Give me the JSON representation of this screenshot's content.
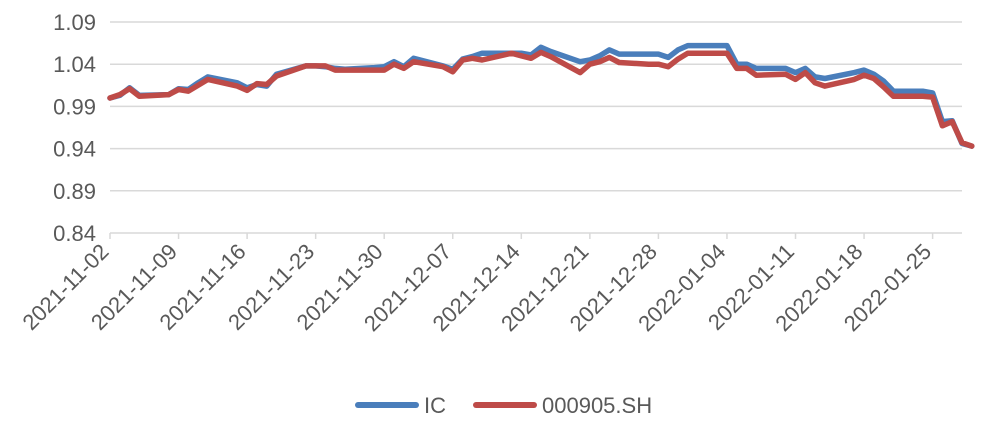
{
  "chart_data": {
    "type": "line",
    "title": "",
    "xlabel": "",
    "ylabel": "",
    "ylim": [
      0.84,
      1.09
    ],
    "yticks": [
      "0.84",
      "0.89",
      "0.94",
      "0.99",
      "1.04",
      "1.09"
    ],
    "xlim": [
      "2021-11-02",
      "2022-01-28"
    ],
    "xticks": [
      "2021-11-02",
      "2021-11-09",
      "2021-11-16",
      "2021-11-23",
      "2021-11-30",
      "2021-12-07",
      "2021-12-14",
      "2021-12-21",
      "2021-12-28",
      "2022-01-04",
      "2022-01-11",
      "2022-01-18",
      "2022-01-25"
    ],
    "grid": true,
    "legend": "bottom",
    "colors": {
      "IC": "#4a7ebb",
      "000905.SH": "#be4b48"
    },
    "series": [
      {
        "name": "IC",
        "points": [
          [
            "2021-11-02",
            1.0
          ],
          [
            "2021-11-03",
            1.003
          ],
          [
            "2021-11-04",
            1.012
          ],
          [
            "2021-11-05",
            1.003
          ],
          [
            "2021-11-08",
            1.004
          ],
          [
            "2021-11-09",
            1.011
          ],
          [
            "2021-11-10",
            1.01
          ],
          [
            "2021-11-11",
            1.018
          ],
          [
            "2021-11-12",
            1.025
          ],
          [
            "2021-11-15",
            1.018
          ],
          [
            "2021-11-16",
            1.012
          ],
          [
            "2021-11-17",
            1.016
          ],
          [
            "2021-11-18",
            1.014
          ],
          [
            "2021-11-19",
            1.028
          ],
          [
            "2021-11-22",
            1.038
          ],
          [
            "2021-11-23",
            1.038
          ],
          [
            "2021-11-24",
            1.037
          ],
          [
            "2021-11-25",
            1.035
          ],
          [
            "2021-11-26",
            1.034
          ],
          [
            "2021-11-29",
            1.036
          ],
          [
            "2021-11-30",
            1.037
          ],
          [
            "2021-12-01",
            1.043
          ],
          [
            "2021-12-02",
            1.037
          ],
          [
            "2021-12-03",
            1.047
          ],
          [
            "2021-12-06",
            1.038
          ],
          [
            "2021-12-07",
            1.034
          ],
          [
            "2021-12-08",
            1.046
          ],
          [
            "2021-12-09",
            1.049
          ],
          [
            "2021-12-10",
            1.053
          ],
          [
            "2021-12-13",
            1.053
          ],
          [
            "2021-12-14",
            1.053
          ],
          [
            "2021-12-15",
            1.051
          ],
          [
            "2021-12-16",
            1.06
          ],
          [
            "2021-12-17",
            1.055
          ],
          [
            "2021-12-20",
            1.043
          ],
          [
            "2021-12-21",
            1.045
          ],
          [
            "2021-12-22",
            1.05
          ],
          [
            "2021-12-23",
            1.057
          ],
          [
            "2021-12-24",
            1.052
          ],
          [
            "2021-12-27",
            1.052
          ],
          [
            "2021-12-28",
            1.052
          ],
          [
            "2021-12-29",
            1.048
          ],
          [
            "2021-12-30",
            1.057
          ],
          [
            "2021-12-31",
            1.062
          ],
          [
            "2022-01-04",
            1.062
          ],
          [
            "2022-01-05",
            1.04
          ],
          [
            "2022-01-06",
            1.04
          ],
          [
            "2022-01-07",
            1.035
          ],
          [
            "2022-01-10",
            1.035
          ],
          [
            "2022-01-11",
            1.03
          ],
          [
            "2022-01-12",
            1.035
          ],
          [
            "2022-01-13",
            1.025
          ],
          [
            "2022-01-14",
            1.023
          ],
          [
            "2022-01-17",
            1.03
          ],
          [
            "2022-01-18",
            1.033
          ],
          [
            "2022-01-19",
            1.028
          ],
          [
            "2022-01-20",
            1.02
          ],
          [
            "2022-01-21",
            1.008
          ],
          [
            "2022-01-24",
            1.008
          ],
          [
            "2022-01-25",
            1.006
          ],
          [
            "2022-01-26",
            0.972
          ],
          [
            "2022-01-27",
            0.973
          ],
          [
            "2022-01-28",
            0.946
          ],
          [
            "2022-01-29",
            0.943
          ]
        ]
      },
      {
        "name": "000905.SH",
        "points": [
          [
            "2021-11-02",
            1.0
          ],
          [
            "2021-11-03",
            1.004
          ],
          [
            "2021-11-04",
            1.011
          ],
          [
            "2021-11-05",
            1.002
          ],
          [
            "2021-11-08",
            1.004
          ],
          [
            "2021-11-09",
            1.01
          ],
          [
            "2021-11-10",
            1.008
          ],
          [
            "2021-11-11",
            1.015
          ],
          [
            "2021-11-12",
            1.022
          ],
          [
            "2021-11-15",
            1.014
          ],
          [
            "2021-11-16",
            1.009
          ],
          [
            "2021-11-17",
            1.017
          ],
          [
            "2021-11-18",
            1.016
          ],
          [
            "2021-11-19",
            1.026
          ],
          [
            "2021-11-22",
            1.038
          ],
          [
            "2021-11-23",
            1.038
          ],
          [
            "2021-11-24",
            1.038
          ],
          [
            "2021-11-25",
            1.033
          ],
          [
            "2021-11-26",
            1.033
          ],
          [
            "2021-11-29",
            1.033
          ],
          [
            "2021-11-30",
            1.033
          ],
          [
            "2021-12-01",
            1.04
          ],
          [
            "2021-12-02",
            1.035
          ],
          [
            "2021-12-03",
            1.043
          ],
          [
            "2021-12-06",
            1.037
          ],
          [
            "2021-12-07",
            1.031
          ],
          [
            "2021-12-08",
            1.045
          ],
          [
            "2021-12-09",
            1.047
          ],
          [
            "2021-12-10",
            1.045
          ],
          [
            "2021-12-13",
            1.053
          ],
          [
            "2021-12-14",
            1.05
          ],
          [
            "2021-12-15",
            1.047
          ],
          [
            "2021-12-16",
            1.054
          ],
          [
            "2021-12-17",
            1.049
          ],
          [
            "2021-12-20",
            1.03
          ],
          [
            "2021-12-21",
            1.04
          ],
          [
            "2021-12-22",
            1.043
          ],
          [
            "2021-12-23",
            1.048
          ],
          [
            "2021-12-24",
            1.042
          ],
          [
            "2021-12-27",
            1.04
          ],
          [
            "2021-12-28",
            1.04
          ],
          [
            "2021-12-29",
            1.037
          ],
          [
            "2021-12-30",
            1.046
          ],
          [
            "2021-12-31",
            1.053
          ],
          [
            "2022-01-04",
            1.053
          ],
          [
            "2022-01-05",
            1.035
          ],
          [
            "2022-01-06",
            1.035
          ],
          [
            "2022-01-07",
            1.027
          ],
          [
            "2022-01-10",
            1.028
          ],
          [
            "2022-01-11",
            1.022
          ],
          [
            "2022-01-12",
            1.03
          ],
          [
            "2022-01-13",
            1.018
          ],
          [
            "2022-01-14",
            1.014
          ],
          [
            "2022-01-17",
            1.022
          ],
          [
            "2022-01-18",
            1.027
          ],
          [
            "2022-01-19",
            1.023
          ],
          [
            "2022-01-20",
            1.013
          ],
          [
            "2022-01-21",
            1.002
          ],
          [
            "2022-01-24",
            1.002
          ],
          [
            "2022-01-25",
            1.001
          ],
          [
            "2022-01-26",
            0.967
          ],
          [
            "2022-01-27",
            0.972
          ],
          [
            "2022-01-28",
            0.947
          ],
          [
            "2022-01-29",
            0.943
          ]
        ]
      }
    ]
  }
}
